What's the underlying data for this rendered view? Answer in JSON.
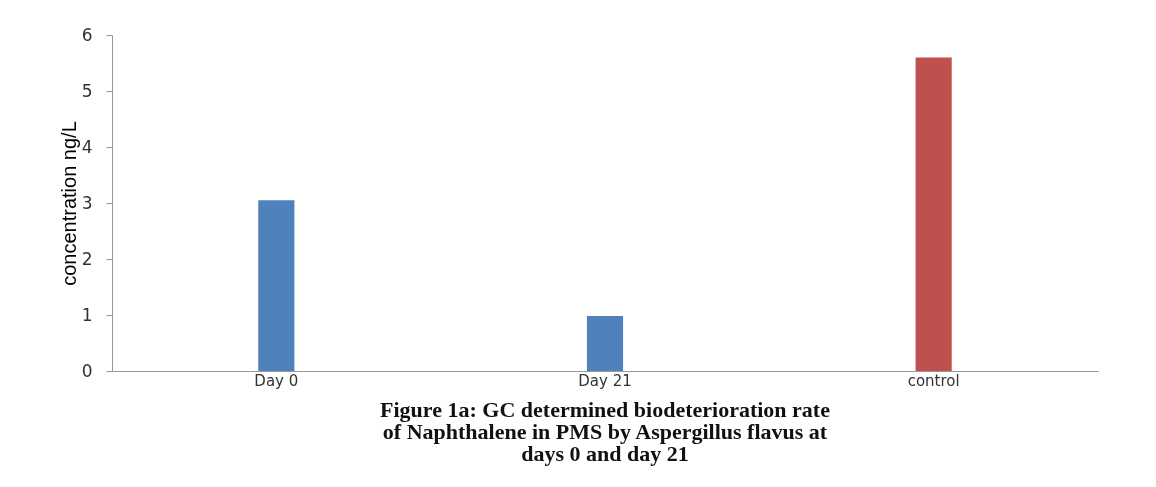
{
  "chart_data": {
    "type": "bar",
    "title": "Figure 1a:  GC determined  biodeterioration rate of Naphthalene in PMS by Aspergillus flavus  at days 0 and day 21",
    "ylabel": "concentration ng/L",
    "categories": [
      "Day 0",
      "Day 21",
      "control",
      null
    ],
    "values": [
      3.05,
      0.98,
      5.6,
      null
    ],
    "colors": [
      "#4f81bd",
      "#4f81bd",
      "#c0504d",
      "#4f81bd"
    ],
    "ylim": [
      0,
      6
    ],
    "yticks": [
      0,
      1,
      2,
      3,
      4,
      5,
      6
    ],
    "grid": false
  }
}
